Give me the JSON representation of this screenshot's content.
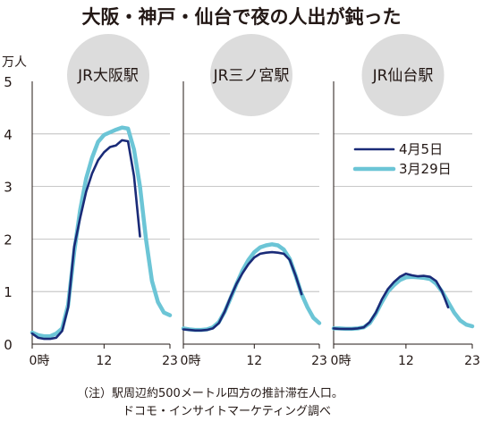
{
  "title": "大阪・神戸・仙台で夜の人出が鈍った",
  "unit_label": "万人",
  "note_lines": [
    "（注）駅周辺約500メートル四方の推計滞在人口。",
    "ドコモ・インサイトマーケティング調べ"
  ],
  "colors": {
    "april5": "#1a2b78",
    "march29": "#6cc5d6",
    "circle": "#dcdcdc",
    "grid": "#b5b5b5",
    "text": "#231815"
  },
  "legend": {
    "position": "right panel, upper middle",
    "items": [
      {
        "label": "4月5日",
        "color": "#1a2b78"
      },
      {
        "label": "3月29日",
        "color": "#6cc5d6"
      }
    ]
  },
  "chart_data": [
    {
      "type": "line",
      "station": "JR大阪駅",
      "x_ticks": [
        "0時",
        "12",
        "23"
      ],
      "y_ticks": [
        "0",
        "1",
        "2",
        "3",
        "4",
        "5"
      ],
      "ylim": [
        0,
        5
      ],
      "xlim": [
        0,
        23
      ],
      "grid": "horizontal",
      "series": [
        {
          "name": "4月5日",
          "color": "#1a2b78",
          "x": [
            0,
            1,
            2,
            3,
            4,
            5,
            6,
            7,
            8,
            9,
            10,
            11,
            12,
            13,
            14,
            15,
            16,
            17,
            18,
            19
          ],
          "y": [
            0.2,
            0.12,
            0.1,
            0.1,
            0.12,
            0.25,
            0.7,
            1.85,
            2.4,
            2.9,
            3.25,
            3.5,
            3.65,
            3.75,
            3.78,
            3.88,
            3.86,
            3.2,
            2.05,
            null
          ]
        },
        {
          "name": "3月29日",
          "color": "#6cc5d6",
          "x": [
            0,
            1,
            2,
            3,
            4,
            5,
            6,
            7,
            8,
            9,
            10,
            11,
            12,
            13,
            14,
            15,
            16,
            17,
            18,
            19,
            20,
            21,
            22,
            23
          ],
          "y": [
            0.22,
            0.17,
            0.15,
            0.15,
            0.2,
            0.3,
            0.75,
            1.75,
            2.55,
            3.15,
            3.55,
            3.85,
            3.98,
            4.03,
            4.08,
            4.12,
            4.1,
            3.7,
            3.0,
            2.0,
            1.2,
            0.8,
            0.6,
            0.55
          ]
        }
      ]
    },
    {
      "type": "line",
      "station": "JR三ノ宮駅",
      "x_ticks": [
        "0時",
        "12",
        "23"
      ],
      "ylim": [
        0,
        5
      ],
      "xlim": [
        0,
        23
      ],
      "grid": "horizontal",
      "series": [
        {
          "name": "4月5日",
          "color": "#1a2b78",
          "x": [
            0,
            1,
            2,
            3,
            4,
            5,
            6,
            7,
            8,
            9,
            10,
            11,
            12,
            13,
            14,
            15,
            16,
            17,
            18,
            19,
            20,
            21
          ],
          "y": [
            0.28,
            0.27,
            0.26,
            0.26,
            0.27,
            0.3,
            0.4,
            0.62,
            0.9,
            1.15,
            1.35,
            1.52,
            1.65,
            1.72,
            1.74,
            1.75,
            1.74,
            1.72,
            1.6,
            1.3,
            0.95,
            null
          ]
        },
        {
          "name": "3月29日",
          "color": "#6cc5d6",
          "x": [
            0,
            1,
            2,
            3,
            4,
            5,
            6,
            7,
            8,
            9,
            10,
            11,
            12,
            13,
            14,
            15,
            16,
            17,
            18,
            19,
            20,
            21,
            22,
            23
          ],
          "y": [
            0.3,
            0.28,
            0.27,
            0.27,
            0.28,
            0.32,
            0.42,
            0.62,
            0.88,
            1.15,
            1.4,
            1.6,
            1.75,
            1.84,
            1.88,
            1.9,
            1.88,
            1.8,
            1.62,
            1.3,
            0.95,
            0.7,
            0.5,
            0.4
          ]
        }
      ]
    },
    {
      "type": "line",
      "station": "JR仙台駅",
      "x_ticks": [
        "0時",
        "12",
        "23"
      ],
      "ylim": [
        0,
        5
      ],
      "xlim": [
        0,
        23
      ],
      "grid": "horizontal",
      "series": [
        {
          "name": "4月5日",
          "color": "#1a2b78",
          "x": [
            0,
            1,
            2,
            3,
            4,
            5,
            6,
            7,
            8,
            9,
            10,
            11,
            12,
            13,
            14,
            15,
            16,
            17,
            18,
            19,
            20
          ],
          "y": [
            0.3,
            0.29,
            0.29,
            0.29,
            0.3,
            0.32,
            0.42,
            0.6,
            0.85,
            1.05,
            1.18,
            1.28,
            1.34,
            1.31,
            1.29,
            1.3,
            1.28,
            1.2,
            1.0,
            0.7,
            null
          ]
        },
        {
          "name": "3月29日",
          "color": "#6cc5d6",
          "x": [
            0,
            1,
            2,
            3,
            4,
            5,
            6,
            7,
            8,
            9,
            10,
            11,
            12,
            13,
            14,
            15,
            16,
            17,
            18,
            19,
            20,
            21,
            22,
            23
          ],
          "y": [
            0.3,
            0.3,
            0.29,
            0.29,
            0.3,
            0.32,
            0.4,
            0.58,
            0.8,
            1.0,
            1.12,
            1.22,
            1.27,
            1.28,
            1.27,
            1.26,
            1.24,
            1.15,
            1.0,
            0.8,
            0.6,
            0.45,
            0.37,
            0.34
          ]
        }
      ]
    }
  ]
}
